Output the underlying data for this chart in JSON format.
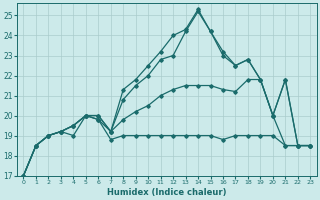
{
  "title": "",
  "xlabel": "Humidex (Indice chaleur)",
  "bg_color": "#cceaea",
  "grid_color": "#aacccc",
  "line_color": "#1a6b6b",
  "xlim": [
    -0.5,
    23.5
  ],
  "ylim": [
    17,
    25.6
  ],
  "yticks": [
    17,
    18,
    19,
    20,
    21,
    22,
    23,
    24,
    25
  ],
  "xticks": [
    0,
    1,
    2,
    3,
    4,
    5,
    6,
    7,
    8,
    9,
    10,
    11,
    12,
    13,
    14,
    15,
    16,
    17,
    18,
    19,
    20,
    21,
    22,
    23
  ],
  "s1_y": [
    17.0,
    18.5,
    19.0,
    19.2,
    19.0,
    20.0,
    19.8,
    18.8,
    19.0,
    19.0,
    19.0,
    19.0,
    19.0,
    19.0,
    19.0,
    19.0,
    18.8,
    19.0,
    19.0,
    19.0,
    19.0,
    18.5,
    18.5,
    18.5
  ],
  "s2_y": [
    17.0,
    18.5,
    19.0,
    19.2,
    19.5,
    20.0,
    19.8,
    19.2,
    19.8,
    20.2,
    20.5,
    21.0,
    21.3,
    21.5,
    21.5,
    21.5,
    21.3,
    21.2,
    21.8,
    21.8,
    20.0,
    18.5,
    18.5,
    18.5
  ],
  "s3_y": [
    17.0,
    18.5,
    19.0,
    19.2,
    19.5,
    20.0,
    20.0,
    19.2,
    20.8,
    21.5,
    22.0,
    22.8,
    23.0,
    24.2,
    25.2,
    24.2,
    23.0,
    22.5,
    22.8,
    21.8,
    20.0,
    21.8,
    18.5,
    18.5
  ],
  "s4_y": [
    17.0,
    18.5,
    19.0,
    19.2,
    19.5,
    20.0,
    20.0,
    19.2,
    21.3,
    21.8,
    22.5,
    23.2,
    24.0,
    24.3,
    25.3,
    24.2,
    23.2,
    22.5,
    22.8,
    21.8,
    20.0,
    21.8,
    18.5,
    18.5
  ]
}
